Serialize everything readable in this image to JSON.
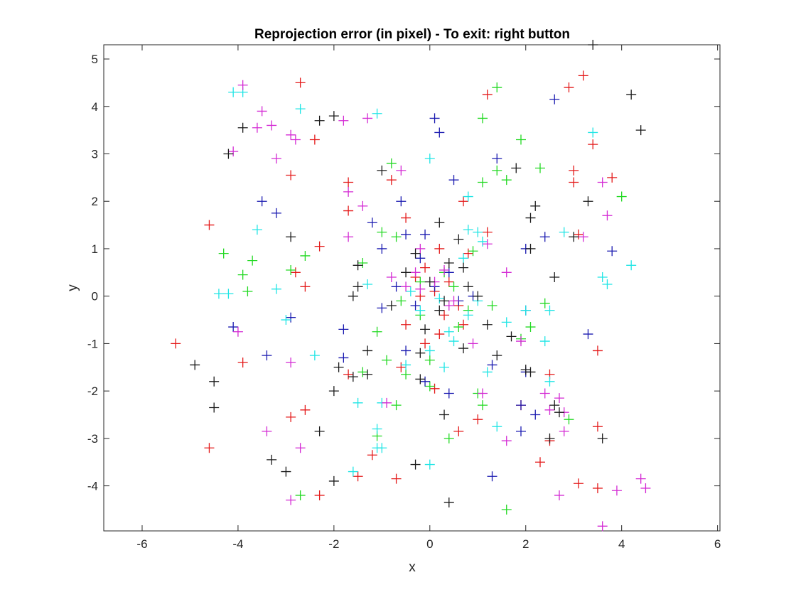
{
  "chart_data": {
    "type": "scatter",
    "title": "Reprojection error (in pixel) - To exit: right button",
    "xlabel": "x",
    "ylabel": "y",
    "xlim": [
      -6.8,
      6.05
    ],
    "ylim": [
      -4.95,
      5.3
    ],
    "xticks": [
      "-6",
      "-4",
      "-2",
      "0",
      "2",
      "4",
      "6"
    ],
    "yticks": [
      "5",
      "4",
      "3",
      "2",
      "1",
      "0",
      "-1",
      "-2",
      "-3",
      "-4"
    ],
    "marker": "plus",
    "grid": false,
    "legend": "none",
    "series": [
      {
        "color": "#e41a1a",
        "points": [
          [
            -2.7,
            4.5
          ],
          [
            3.2,
            4.65
          ],
          [
            2.9,
            4.4
          ],
          [
            1.2,
            4.25
          ],
          [
            -2.4,
            3.3
          ],
          [
            3.4,
            3.2
          ],
          [
            -2.9,
            2.55
          ],
          [
            3.0,
            2.65
          ],
          [
            3.8,
            2.5
          ],
          [
            -1.7,
            2.4
          ],
          [
            3.0,
            2.4
          ],
          [
            -0.8,
            2.45
          ],
          [
            0.7,
            2.0
          ],
          [
            -1.7,
            1.8
          ],
          [
            -0.5,
            1.65
          ],
          [
            -4.6,
            1.5
          ],
          [
            1.2,
            1.35
          ],
          [
            3.1,
            1.3
          ],
          [
            -2.3,
            1.05
          ],
          [
            0.2,
            1.0
          ],
          [
            0.8,
            0.9
          ],
          [
            -0.1,
            0.6
          ],
          [
            -2.8,
            0.5
          ],
          [
            -0.3,
            0.4
          ],
          [
            0.4,
            0.3
          ],
          [
            -2.6,
            0.2
          ],
          [
            0.1,
            0.1
          ],
          [
            -0.2,
            0.0
          ],
          [
            0.6,
            -0.2
          ],
          [
            0.3,
            -0.4
          ],
          [
            0.7,
            -0.6
          ],
          [
            -0.5,
            -0.6
          ],
          [
            0.2,
            -0.8
          ],
          [
            -5.3,
            -1.0
          ],
          [
            -0.1,
            -1.0
          ],
          [
            3.5,
            -1.15
          ],
          [
            -3.9,
            -1.4
          ],
          [
            -0.6,
            -1.5
          ],
          [
            -1.7,
            -1.65
          ],
          [
            2.5,
            -1.65
          ],
          [
            0.1,
            -1.95
          ],
          [
            1.9,
            -2.3
          ],
          [
            -2.6,
            -2.4
          ],
          [
            -2.9,
            -2.55
          ],
          [
            1.0,
            -2.6
          ],
          [
            0.6,
            -2.85
          ],
          [
            3.5,
            -2.75
          ],
          [
            2.5,
            -3.05
          ],
          [
            -4.6,
            -3.2
          ],
          [
            -1.2,
            -3.35
          ],
          [
            2.3,
            -3.5
          ],
          [
            -1.5,
            -3.8
          ],
          [
            -0.7,
            -3.85
          ],
          [
            3.1,
            -3.95
          ],
          [
            3.5,
            -4.05
          ],
          [
            -2.3,
            -4.2
          ]
        ]
      },
      {
        "color": "#22d922",
        "points": [
          [
            1.4,
            4.4
          ],
          [
            1.1,
            3.75
          ],
          [
            1.9,
            3.3
          ],
          [
            -0.8,
            2.8
          ],
          [
            1.4,
            2.65
          ],
          [
            2.3,
            2.7
          ],
          [
            1.1,
            2.4
          ],
          [
            1.6,
            2.45
          ],
          [
            4.0,
            2.1
          ],
          [
            -1.0,
            1.35
          ],
          [
            -0.7,
            1.25
          ],
          [
            -3.7,
            0.75
          ],
          [
            -4.3,
            0.9
          ],
          [
            -2.6,
            0.85
          ],
          [
            -3.9,
            0.45
          ],
          [
            -2.9,
            0.55
          ],
          [
            -1.4,
            0.7
          ],
          [
            0.9,
            0.95
          ],
          [
            0.3,
            0.5
          ],
          [
            -0.2,
            0.3
          ],
          [
            0.5,
            0.2
          ],
          [
            -3.8,
            0.1
          ],
          [
            -0.6,
            -0.1
          ],
          [
            0.8,
            -0.3
          ],
          [
            1.3,
            -0.2
          ],
          [
            2.4,
            -0.15
          ],
          [
            -0.2,
            -0.4
          ],
          [
            0.6,
            -0.65
          ],
          [
            1.9,
            -0.9
          ],
          [
            2.1,
            -0.65
          ],
          [
            -1.1,
            -0.75
          ],
          [
            0.0,
            -1.35
          ],
          [
            -1.4,
            -1.6
          ],
          [
            -0.9,
            -1.35
          ],
          [
            -0.5,
            -1.65
          ],
          [
            0.0,
            -1.9
          ],
          [
            1.0,
            -2.05
          ],
          [
            -0.7,
            -2.3
          ],
          [
            1.1,
            -2.3
          ],
          [
            2.9,
            -2.6
          ],
          [
            -1.1,
            -2.95
          ],
          [
            0.4,
            -3.0
          ],
          [
            -2.7,
            -4.2
          ],
          [
            1.6,
            -4.5
          ]
        ]
      },
      {
        "color": "#1a1ab0",
        "points": [
          [
            2.6,
            4.15
          ],
          [
            0.1,
            3.75
          ],
          [
            0.2,
            3.45
          ],
          [
            1.4,
            2.9
          ],
          [
            0.5,
            2.45
          ],
          [
            -3.5,
            2.0
          ],
          [
            -0.6,
            2.0
          ],
          [
            -3.2,
            1.75
          ],
          [
            -1.2,
            1.55
          ],
          [
            2.4,
            1.25
          ],
          [
            -0.5,
            1.3
          ],
          [
            -0.1,
            1.3
          ],
          [
            2.0,
            1.0
          ],
          [
            3.8,
            0.95
          ],
          [
            -1.0,
            1.0
          ],
          [
            -0.2,
            0.8
          ],
          [
            0.4,
            0.5
          ],
          [
            -0.7,
            0.2
          ],
          [
            0.1,
            0.2
          ],
          [
            0.9,
            0.0
          ],
          [
            -0.3,
            -0.2
          ],
          [
            0.6,
            -0.1
          ],
          [
            -1.0,
            -0.25
          ],
          [
            -2.9,
            -0.45
          ],
          [
            2.0,
            -0.3
          ],
          [
            -4.1,
            -0.65
          ],
          [
            -1.8,
            -0.7
          ],
          [
            3.3,
            -0.8
          ],
          [
            -0.5,
            -1.15
          ],
          [
            1.3,
            -1.45
          ],
          [
            -1.8,
            -1.3
          ],
          [
            -3.4,
            -1.25
          ],
          [
            2.0,
            -1.6
          ],
          [
            -0.1,
            -1.8
          ],
          [
            0.4,
            -2.05
          ],
          [
            1.9,
            -2.3
          ],
          [
            2.2,
            -2.5
          ],
          [
            1.9,
            -2.85
          ],
          [
            1.3,
            -3.8
          ]
        ]
      },
      {
        "color": "#1fe5e5",
        "points": [
          [
            -4.1,
            4.3
          ],
          [
            -3.9,
            4.3
          ],
          [
            -2.7,
            3.95
          ],
          [
            -1.1,
            3.85
          ],
          [
            3.4,
            3.45
          ],
          [
            0.0,
            2.9
          ],
          [
            0.8,
            2.1
          ],
          [
            -3.6,
            1.4
          ],
          [
            0.8,
            1.4
          ],
          [
            1.0,
            1.35
          ],
          [
            2.8,
            1.35
          ],
          [
            1.1,
            1.15
          ],
          [
            0.7,
            0.8
          ],
          [
            4.2,
            0.65
          ],
          [
            3.6,
            0.4
          ],
          [
            3.7,
            0.25
          ],
          [
            -4.4,
            0.05
          ],
          [
            -4.2,
            0.05
          ],
          [
            -3.2,
            0.15
          ],
          [
            -1.3,
            0.25
          ],
          [
            -0.4,
            0.1
          ],
          [
            0.2,
            -0.05
          ],
          [
            1.0,
            -0.1
          ],
          [
            -0.2,
            -0.3
          ],
          [
            0.8,
            -0.4
          ],
          [
            1.6,
            -0.55
          ],
          [
            2.5,
            -0.3
          ],
          [
            2.0,
            -0.3
          ],
          [
            -3.0,
            -0.5
          ],
          [
            0.4,
            -0.75
          ],
          [
            0.5,
            -0.95
          ],
          [
            2.4,
            -0.95
          ],
          [
            0.0,
            -1.15
          ],
          [
            -2.4,
            -1.25
          ],
          [
            1.2,
            -1.6
          ],
          [
            0.3,
            -1.5
          ],
          [
            -0.5,
            -1.45
          ],
          [
            -1.5,
            -2.25
          ],
          [
            -1.0,
            -2.25
          ],
          [
            2.5,
            -1.8
          ],
          [
            -1.1,
            -2.8
          ],
          [
            -1.1,
            -3.2
          ],
          [
            1.4,
            -2.75
          ],
          [
            -1.0,
            -3.2
          ],
          [
            -1.6,
            -3.7
          ],
          [
            0.0,
            -3.55
          ]
        ]
      },
      {
        "color": "#d42ad4",
        "points": [
          [
            -3.9,
            4.45
          ],
          [
            -3.5,
            3.9
          ],
          [
            -3.6,
            3.55
          ],
          [
            -3.3,
            3.6
          ],
          [
            -2.9,
            3.4
          ],
          [
            -2.8,
            3.3
          ],
          [
            -1.8,
            3.7
          ],
          [
            -1.3,
            3.75
          ],
          [
            -4.1,
            3.05
          ],
          [
            -3.2,
            2.9
          ],
          [
            -0.6,
            2.65
          ],
          [
            -1.7,
            2.2
          ],
          [
            -1.4,
            1.9
          ],
          [
            3.6,
            2.4
          ],
          [
            3.7,
            1.7
          ],
          [
            -1.7,
            1.25
          ],
          [
            -0.2,
            1.0
          ],
          [
            1.2,
            1.1
          ],
          [
            3.2,
            1.25
          ],
          [
            -0.3,
            0.5
          ],
          [
            0.3,
            0.55
          ],
          [
            0.1,
            0.3
          ],
          [
            -0.8,
            0.4
          ],
          [
            -0.2,
            0.15
          ],
          [
            0.4,
            -0.2
          ],
          [
            -0.5,
            0.2
          ],
          [
            0.5,
            -0.1
          ],
          [
            1.6,
            0.5
          ],
          [
            -4.0,
            -0.75
          ],
          [
            1.9,
            -0.95
          ],
          [
            0.9,
            -1.0
          ],
          [
            -2.9,
            -1.4
          ],
          [
            -0.9,
            -2.25
          ],
          [
            1.1,
            -2.05
          ],
          [
            2.4,
            -2.05
          ],
          [
            2.7,
            -2.15
          ],
          [
            2.5,
            -2.4
          ],
          [
            2.8,
            -2.45
          ],
          [
            1.6,
            -3.05
          ],
          [
            2.8,
            -2.85
          ],
          [
            -3.4,
            -2.85
          ],
          [
            -2.7,
            -3.2
          ],
          [
            3.9,
            -4.1
          ],
          [
            4.4,
            -3.85
          ],
          [
            4.5,
            -4.05
          ],
          [
            2.7,
            -4.2
          ],
          [
            -2.9,
            -4.3
          ],
          [
            3.6,
            -4.85
          ]
        ]
      },
      {
        "color": "#1a1a1a",
        "points": [
          [
            3.4,
            5.3
          ],
          [
            4.2,
            4.25
          ],
          [
            4.4,
            3.5
          ],
          [
            -3.9,
            3.55
          ],
          [
            -2.3,
            3.7
          ],
          [
            -2.0,
            3.8
          ],
          [
            -4.2,
            3.0
          ],
          [
            -1.0,
            2.65
          ],
          [
            1.8,
            2.7
          ],
          [
            3.3,
            2.0
          ],
          [
            2.2,
            1.9
          ],
          [
            2.1,
            1.65
          ],
          [
            0.2,
            1.55
          ],
          [
            -2.9,
            1.25
          ],
          [
            3.0,
            1.25
          ],
          [
            2.1,
            1.0
          ],
          [
            0.6,
            1.2
          ],
          [
            -0.3,
            0.9
          ],
          [
            0.4,
            0.7
          ],
          [
            -1.5,
            0.65
          ],
          [
            -0.5,
            0.5
          ],
          [
            0.7,
            0.6
          ],
          [
            -1.5,
            0.2
          ],
          [
            0.0,
            0.3
          ],
          [
            -1.6,
            0.0
          ],
          [
            0.3,
            -0.1
          ],
          [
            0.8,
            0.2
          ],
          [
            1.0,
            0.0
          ],
          [
            -0.8,
            -0.2
          ],
          [
            0.2,
            -0.3
          ],
          [
            -0.1,
            -0.7
          ],
          [
            1.2,
            -0.6
          ],
          [
            0.7,
            -1.1
          ],
          [
            1.7,
            -0.85
          ],
          [
            2.6,
            0.4
          ],
          [
            -0.2,
            -1.2
          ],
          [
            -1.3,
            -1.15
          ],
          [
            1.4,
            -1.25
          ],
          [
            2.0,
            -1.55
          ],
          [
            2.1,
            -1.6
          ],
          [
            -1.9,
            -1.5
          ],
          [
            -1.6,
            -1.7
          ],
          [
            -1.3,
            -1.65
          ],
          [
            -4.9,
            -1.45
          ],
          [
            -4.5,
            -1.8
          ],
          [
            -2.0,
            -2.0
          ],
          [
            -0.2,
            -1.75
          ],
          [
            2.6,
            -2.3
          ],
          [
            2.7,
            -2.45
          ],
          [
            -4.5,
            -2.35
          ],
          [
            0.3,
            -2.5
          ],
          [
            -2.3,
            -2.85
          ],
          [
            2.5,
            -3.0
          ],
          [
            3.6,
            -3.0
          ],
          [
            -3.3,
            -3.45
          ],
          [
            -3.0,
            -3.7
          ],
          [
            -0.3,
            -3.55
          ],
          [
            -2.0,
            -3.9
          ],
          [
            0.4,
            -4.35
          ]
        ]
      }
    ]
  }
}
